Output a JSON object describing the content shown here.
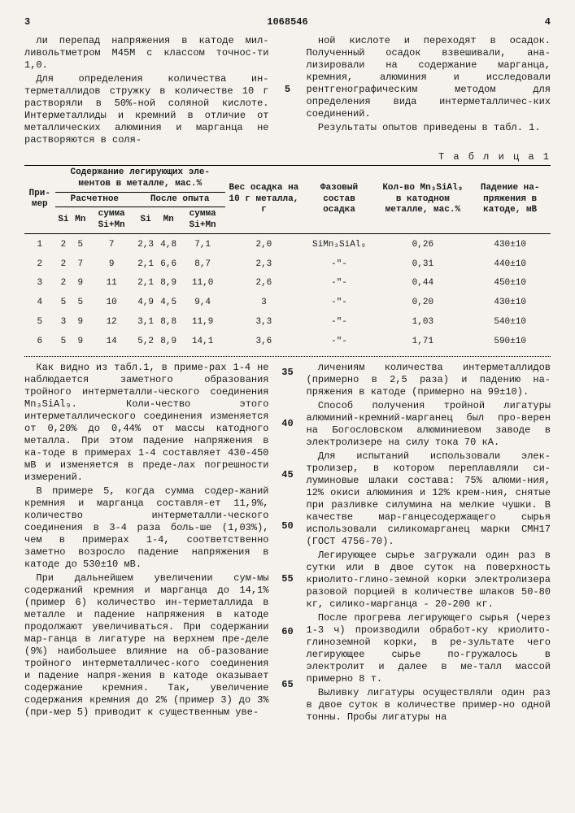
{
  "header": {
    "page_left": "3",
    "doc_number": "1068546",
    "page_right": "4"
  },
  "intro_left": [
    "ли перепад напряжения в катоде мил-ливольтметром М45М с классом точнос-ти 1,0.",
    "Для определения количества ин-терметаллидов стружку в количестве 10 г растворяли в 50%-ной соляной кислоте. Интерметаллиды и кремний в отличие от металлических алюминия и марганца не растворяются в соля-"
  ],
  "intro_right": [
    "ной кислоте и переходят в осадок. Полученный осадок взвешивали, ана-лизировали на содержание марганца, кремния, алюминия и исследовали рентгенографическим методом для определения вида интерметалличес-ких соединений.",
    "Результаты опытов приведены в табл. 1."
  ],
  "intro_linenum": "5",
  "table": {
    "label": "Т а б л и ц а 1",
    "headers": {
      "c1": "При-мер",
      "c2": "Содержание легирующих эле-ментов в металле, мас.%",
      "c2a": "Расчетное",
      "c2b": "После опыта",
      "sub1": "Si",
      "sub2": "Mn",
      "sub3": "сумма Si+Mn",
      "sub4": "Si",
      "sub5": "Mn",
      "sub6": "сумма Si+Mn",
      "c3": "Вес осадка на 10 г металла, г",
      "c4": "Фазовый состав осадка",
      "c5": "Кол-во Mn₃SiAl₉ в катодном металле, мас.%",
      "c6": "Падение на-пряжения в катоде, мВ"
    },
    "rows": [
      {
        "n": "1",
        "si": "2",
        "mn": "5",
        "sum": "7",
        "sio": "2,3",
        "mno": "4,8",
        "sumo": "7,1",
        "wt": "2,0",
        "phase": "SiMn₃SiAl₉",
        "qty": "0,26",
        "drop": "430±10"
      },
      {
        "n": "2",
        "si": "2",
        "mn": "7",
        "sum": "9",
        "sio": "2,1",
        "mno": "6,6",
        "sumo": "8,7",
        "wt": "2,3",
        "phase": "-\"-",
        "qty": "0,31",
        "drop": "440±10"
      },
      {
        "n": "3",
        "si": "2",
        "mn": "9",
        "sum": "11",
        "sio": "2,1",
        "mno": "8,9",
        "sumo": "11,0",
        "wt": "2,6",
        "phase": "-\"-",
        "qty": "0,44",
        "drop": "450±10"
      },
      {
        "n": "4",
        "si": "5",
        "mn": "5",
        "sum": "10",
        "sio": "4,9",
        "mno": "4,5",
        "sumo": "9,4",
        "wt": "3",
        "phase": "-\"-",
        "qty": "0,20",
        "drop": "430±10"
      },
      {
        "n": "5",
        "si": "3",
        "mn": "9",
        "sum": "12",
        "sio": "3,1",
        "mno": "8,8",
        "sumo": "11,9",
        "wt": "3,3",
        "phase": "-\"-",
        "qty": "1,03",
        "drop": "540±10"
      },
      {
        "n": "6",
        "si": "5",
        "mn": "9",
        "sum": "14",
        "sio": "5,2",
        "mno": "8,9",
        "sumo": "14,1",
        "wt": "3,6",
        "phase": "-\"-",
        "qty": "1,71",
        "drop": "590±10"
      }
    ]
  },
  "body_left": [
    "Как видно из табл.1, в приме-рах 1-4 не наблюдается заметного образования тройного интерметалли-ческого соединения Mn₃SiAl₉. Коли-чество этого интерметаллического соединения изменяется от 0,20% до 0,44% от массы катодного металла. При этом падение напряжения в ка-тоде в примерах 1-4 составляет 430-450 мВ и изменяется в преде-лах погрешности измерений.",
    "В примере 5, когда сумма содер-жаний кремния и марганца составля-ет 11,9%, количество интерметалли-ческого соединения в 3-4 раза боль-ше (1,03%), чем в примерах 1-4, соответственно заметно возросло падение напряжения в катоде до 530±10 мВ.",
    "При дальнейшем увеличении сум-мы содержаний кремния и марганца до 14,1% (пример 6) количество ин-терметаллида в металле и падение напряжения в катоде продолжают увеличиваться. При содержании мар-ганца в лигатуре на верхнем пре-деле (9%) наибольшее влияние на об-разование тройного интерметалличес-кого соединения и падение напря-жения в катоде оказывает содержание кремния. Так, увеличение содержания кремния до 2% (пример 3) до 3% (при-мер 5) приводит к существенным уве-"
  ],
  "body_right": [
    "личениям количества интерметаллидов (примерно в 2,5 раза) и падению на-пряжения в катоде (примерно на 99±10).",
    "Способ получения тройной лигатуры алюминий-кремний-марганец был про-верен на Богословском алюминиевом заводе в электролизере на силу тока 70 кА.",
    "Для испытаний использовали элек-тролизер, в котором переплавляли си-луминовые шлаки состава: 75% алюми-ния, 12% окиси алюминия и 12% крем-ния, снятые при разливке силумина на мелкие чушки. В качестве мар-ганцесодержащего сырья использовали силикомарганец марки СМН17 (ГОСТ 4756-70).",
    "Легирующее сырье загружали один раз в сутки или в двое суток на поверхность криолито-глино-земной корки электролизера разовой порцией в количестве шлаков 50-80 кг, силико-марганца - 20-200 кг.",
    "После прогрева легирующего сырья (через 1-3 ч) производили обработ-ку криолито-глиноземной корки, в ре-зультате чего легирующее сырье по-гружалось в электролит и далее в ме-талл массой примерно 8 т.",
    "Выливку лигатуры осуществляли один раз в двое суток в количестве пример-но одной тонны. Пробы лигатуры на"
  ],
  "body_linenums": [
    "35",
    "40",
    "45",
    "50",
    "55",
    "60",
    "65"
  ]
}
